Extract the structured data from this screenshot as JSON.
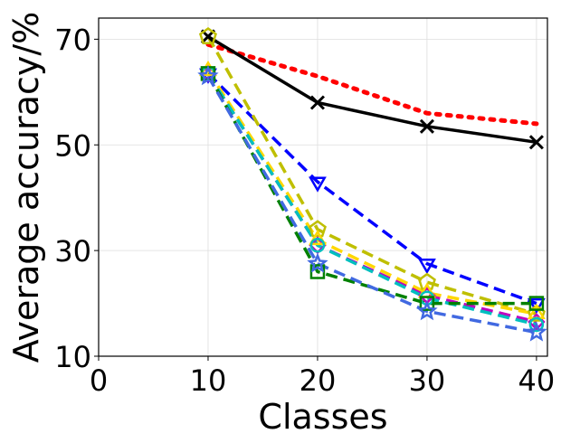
{
  "chart_data": {
    "type": "line",
    "xlabel": "Classes",
    "ylabel": "Average accuracy/%",
    "xlim": [
      0,
      41
    ],
    "ylim": [
      10,
      74
    ],
    "x": [
      10,
      20,
      30,
      40
    ],
    "xticks": [
      "0",
      "10",
      "20",
      "30",
      "40"
    ],
    "yticks": [
      "10",
      "30",
      "50",
      "70"
    ],
    "grid": true,
    "legend": "none",
    "series": [
      {
        "color": "#ff0000",
        "dash": "dotted",
        "marker": "none",
        "values": [
          69,
          63,
          56,
          54
        ]
      },
      {
        "color": "#000000",
        "dash": "solid",
        "marker": "x",
        "values": [
          70.5,
          58,
          53.5,
          50.5
        ]
      },
      {
        "color": "#0000ff",
        "dash": "dashed",
        "marker": "triangle-down",
        "values": [
          63.5,
          43,
          27.5,
          20
        ]
      },
      {
        "color": "#bfbf00",
        "dash": "dashed",
        "marker": "pentagon",
        "values": [
          70.5,
          34,
          24,
          18
        ]
      },
      {
        "color": "#bf00bf",
        "dash": "dashed",
        "marker": "diamond",
        "values": [
          63.5,
          31,
          21.5,
          16.5
        ]
      },
      {
        "color": "#ffd700",
        "dash": "dashed",
        "marker": "triangle-up",
        "values": [
          64,
          32,
          22,
          18
        ]
      },
      {
        "color": "#00bfbf",
        "dash": "dashed",
        "marker": "circle",
        "values": [
          63.5,
          31,
          21,
          16
        ]
      },
      {
        "color": "#008000",
        "dash": "dashed",
        "marker": "square",
        "values": [
          63.5,
          26,
          20,
          20
        ]
      },
      {
        "color": "#4169e1",
        "dash": "dashed",
        "marker": "star",
        "values": [
          63,
          27.5,
          18.5,
          14.5
        ]
      }
    ]
  }
}
